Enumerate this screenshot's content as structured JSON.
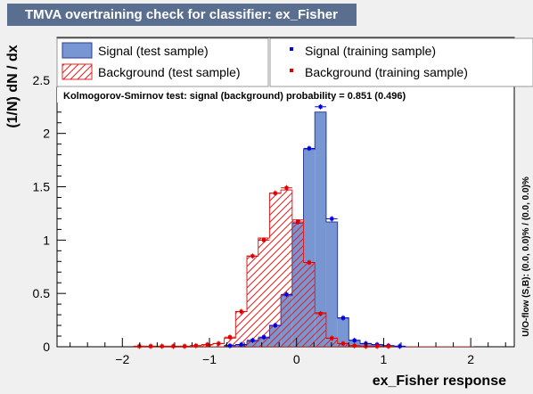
{
  "title": "TMVA overtraining check for classifier: ex_Fisher",
  "legend": {
    "signal_test": "Signal (test sample)",
    "background_test": "Background (test sample)",
    "signal_train": "Signal (training sample)",
    "background_train": "Background (training sample)"
  },
  "ks_text": "Kolmogorov-Smirnov test: signal (background) probability = 0.851 (0.496)",
  "side_text": "U/O-flow (S,B): (0.0, 0.0)% / (0.0, 0.0)%",
  "colors": {
    "signal_fill": "#7896d2",
    "signal_line": "#2c3f96",
    "background_line": "#e02020",
    "signal_marker": "#0000e0",
    "background_marker": "#e00000",
    "title_bg": "#5a6f8f"
  },
  "chart_data": {
    "type": "histogram",
    "xlabel": "ex_Fisher response",
    "ylabel": "(1/N) dN / dx",
    "xlim": [
      -2.75,
      2.5
    ],
    "ylim": [
      0,
      2.9
    ],
    "xticks": [
      -2,
      -1,
      0,
      1,
      2
    ],
    "yticks": [
      0,
      0.5,
      1,
      1.5,
      2,
      2.5
    ],
    "xtick_labels": [
      "−2",
      "−1",
      "0",
      "1",
      "2"
    ],
    "ytick_labels": [
      "0",
      "0.5",
      "1",
      "1.5",
      "2",
      "2.5"
    ],
    "bin_edges": [
      -1.87,
      -1.74,
      -1.61,
      -1.48,
      -1.35,
      -1.22,
      -1.09,
      -0.96,
      -0.83,
      -0.7,
      -0.57,
      -0.44,
      -0.31,
      -0.18,
      -0.05,
      0.08,
      0.21,
      0.34,
      0.47,
      0.6,
      0.73,
      0.86,
      0.99,
      1.12,
      1.25,
      1.38,
      1.51,
      1.64,
      1.77,
      1.9,
      2.03
    ],
    "series": [
      {
        "name": "Signal (test sample)",
        "kind": "hist-filled",
        "values": [
          0,
          0,
          0,
          0,
          0,
          0,
          0,
          0,
          0.01,
          0.02,
          0.05,
          0.08,
          0.2,
          0.48,
          1.16,
          1.85,
          2.2,
          1.17,
          0.27,
          0.06,
          0.03,
          0.02,
          0.01,
          0.005,
          0,
          0,
          0,
          0,
          0,
          0
        ]
      },
      {
        "name": "Background (test sample)",
        "kind": "hist-hatched",
        "values": [
          0.005,
          0.005,
          0.005,
          0.005,
          0.005,
          0.01,
          0.02,
          0.03,
          0.08,
          0.33,
          0.85,
          1.02,
          1.44,
          1.47,
          1.19,
          0.79,
          0.32,
          0.08,
          0.03,
          0.01,
          0.005,
          0.005,
          0.005,
          0,
          0,
          0,
          0,
          0,
          0,
          0
        ]
      },
      {
        "name": "Signal (training sample)",
        "kind": "points",
        "values": [
          0,
          0,
          0,
          0,
          0,
          0,
          0,
          0,
          0.01,
          0.02,
          0.06,
          0.09,
          0.2,
          0.49,
          1.17,
          1.86,
          2.25,
          1.2,
          0.27,
          0.06,
          0.03,
          0.02,
          0.01,
          0.005,
          0,
          0,
          0,
          0,
          0,
          0
        ]
      },
      {
        "name": "Background (training sample)",
        "kind": "points",
        "values": [
          0.005,
          0.005,
          0.005,
          0.005,
          0.005,
          0.01,
          0.02,
          0.03,
          0.09,
          0.33,
          0.85,
          1.0,
          1.44,
          1.49,
          1.17,
          0.79,
          0.31,
          0.08,
          0.03,
          0.01,
          0.005,
          0.005,
          0.005,
          0,
          0,
          0,
          0,
          0,
          0,
          0
        ]
      }
    ]
  }
}
